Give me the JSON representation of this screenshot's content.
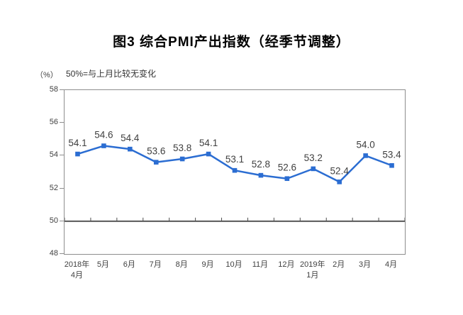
{
  "figure": {
    "title": "图3 综合PMI产出指数（经季节调整）",
    "unit_label": "（%）",
    "note": "50%=与上月比较无变化"
  },
  "colors": {
    "line": "#2b6dd2",
    "marker": "#2b6dd2",
    "data_label": "#3f3f3f",
    "axis_border": "#8e8e8e",
    "reference_line": "#4d4d4d",
    "tick_text": "#404040"
  },
  "chart_data": {
    "type": "line",
    "title": "图3 综合PMI产出指数（经季节调整）",
    "categories": [
      [
        "2018年",
        "4月"
      ],
      [
        "5月"
      ],
      [
        "6月"
      ],
      [
        "7月"
      ],
      [
        "8月"
      ],
      [
        "9月"
      ],
      [
        "10月"
      ],
      [
        "11月"
      ],
      [
        "12月"
      ],
      [
        "2019年",
        "1月"
      ],
      [
        "2月"
      ],
      [
        "3月"
      ],
      [
        "4月"
      ]
    ],
    "values": [
      54.1,
      54.6,
      54.4,
      53.6,
      53.8,
      54.1,
      53.1,
      52.8,
      52.6,
      53.2,
      52.4,
      54.0,
      53.4
    ],
    "ylabel": "（%）",
    "ylim": [
      48,
      58
    ],
    "yticks": [
      48,
      50,
      52,
      54,
      56,
      58
    ],
    "reference_line": 50,
    "reference_note": "50%=与上月比较无变化",
    "grid": false,
    "legend": "none",
    "marker": "square",
    "value_decimals": 1
  }
}
